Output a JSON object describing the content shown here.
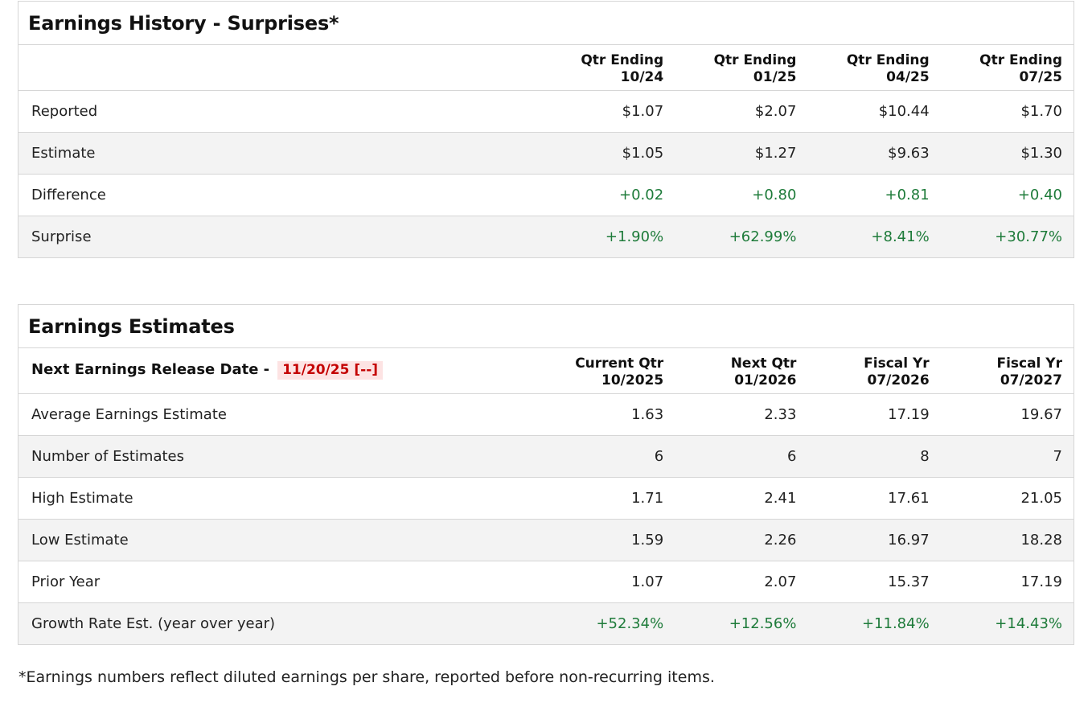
{
  "history": {
    "title": "Earnings History - Surprises*",
    "columns": [
      {
        "line1": "Qtr Ending",
        "line2": "10/24"
      },
      {
        "line1": "Qtr Ending",
        "line2": "01/25"
      },
      {
        "line1": "Qtr Ending",
        "line2": "04/25"
      },
      {
        "line1": "Qtr Ending",
        "line2": "07/25"
      }
    ],
    "rows": [
      {
        "label": "Reported",
        "values": [
          "$1.07",
          "$2.07",
          "$10.44",
          "$1.70"
        ]
      },
      {
        "label": "Estimate",
        "values": [
          "$1.05",
          "$1.27",
          "$9.63",
          "$1.30"
        ]
      },
      {
        "label": "Difference",
        "values": [
          "+0.02",
          "+0.80",
          "+0.81",
          "+0.40"
        ]
      },
      {
        "label": "Surprise",
        "values": [
          "+1.90%",
          "+62.99%",
          "+8.41%",
          "+30.77%"
        ]
      }
    ]
  },
  "estimates": {
    "title": "Earnings Estimates",
    "release_label": "Next Earnings Release Date -",
    "release_date": "11/20/25 [--]",
    "columns": [
      {
        "line1": "Current Qtr",
        "line2": "10/2025"
      },
      {
        "line1": "Next Qtr",
        "line2": "01/2026"
      },
      {
        "line1": "Fiscal Yr",
        "line2": "07/2026"
      },
      {
        "line1": "Fiscal Yr",
        "line2": "07/2027"
      }
    ],
    "rows": [
      {
        "label": "Average Earnings Estimate",
        "values": [
          "1.63",
          "2.33",
          "17.19",
          "19.67"
        ]
      },
      {
        "label": "Number of Estimates",
        "values": [
          "6",
          "6",
          "8",
          "7"
        ]
      },
      {
        "label": "High Estimate",
        "values": [
          "1.71",
          "2.41",
          "17.61",
          "21.05"
        ]
      },
      {
        "label": "Low Estimate",
        "values": [
          "1.59",
          "2.26",
          "16.97",
          "18.28"
        ]
      },
      {
        "label": "Prior Year",
        "values": [
          "1.07",
          "2.07",
          "15.37",
          "17.19"
        ]
      },
      {
        "label": "Growth Rate Est. (year over year)",
        "values": [
          "+52.34%",
          "+12.56%",
          "+11.84%",
          "+14.43%"
        ]
      }
    ]
  },
  "footnote": "*Earnings numbers reflect diluted earnings per share, reported before non-recurring items.",
  "colors": {
    "positive": "#1e7b3a",
    "release_date_text": "#c40000",
    "release_date_bg": "#fde3e3"
  }
}
